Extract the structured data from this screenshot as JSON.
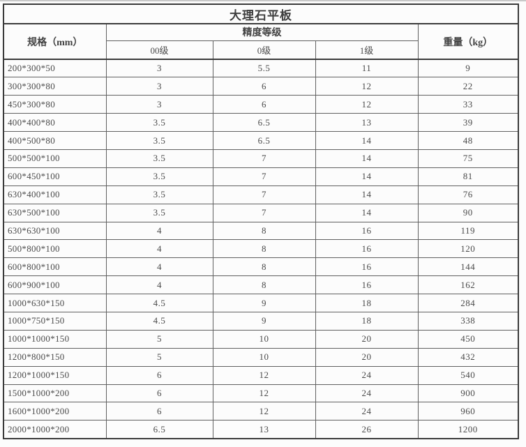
{
  "table": {
    "title": "大理石平板",
    "header": {
      "spec": "规格（mm）",
      "accuracy_group": "精度等级",
      "grades": [
        "00级",
        "0级",
        "1级"
      ],
      "weight": "重量（kg）"
    },
    "rows": [
      [
        "200*300*50",
        "3",
        "5.5",
        "11",
        "9"
      ],
      [
        "300*300*80",
        "3",
        "6",
        "12",
        "22"
      ],
      [
        "450*300*80",
        "3",
        "6",
        "12",
        "33"
      ],
      [
        "400*400*80",
        "3.5",
        "6.5",
        "13",
        "39"
      ],
      [
        "400*500*80",
        "3.5",
        "6.5",
        "14",
        "48"
      ],
      [
        "500*500*100",
        "3.5",
        "7",
        "14",
        "75"
      ],
      [
        "600*450*100",
        "3.5",
        "7",
        "14",
        "81"
      ],
      [
        "630*400*100",
        "3.5",
        "7",
        "14",
        "76"
      ],
      [
        "630*500*100",
        "3.5",
        "7",
        "14",
        "90"
      ],
      [
        "630*630*100",
        "4",
        "8",
        "16",
        "119"
      ],
      [
        "500*800*100",
        "4",
        "8",
        "16",
        "120"
      ],
      [
        "600*800*100",
        "4",
        "8",
        "16",
        "144"
      ],
      [
        "600*900*100",
        "4",
        "8",
        "16",
        "162"
      ],
      [
        "1000*630*150",
        "4.5",
        "9",
        "18",
        "284"
      ],
      [
        "1000*750*150",
        "4.5",
        "9",
        "18",
        "338"
      ],
      [
        "1000*1000*150",
        "5",
        "10",
        "20",
        "450"
      ],
      [
        "1200*800*150",
        "5",
        "10",
        "20",
        "432"
      ],
      [
        "1200*1000*150",
        "6",
        "12",
        "24",
        "540"
      ],
      [
        "1500*1000*200",
        "6",
        "12",
        "24",
        "900"
      ],
      [
        "1600*1000*200",
        "6",
        "12",
        "24",
        "960"
      ],
      [
        "2000*1000*200",
        "6.5",
        "13",
        "26",
        "1200"
      ]
    ]
  }
}
